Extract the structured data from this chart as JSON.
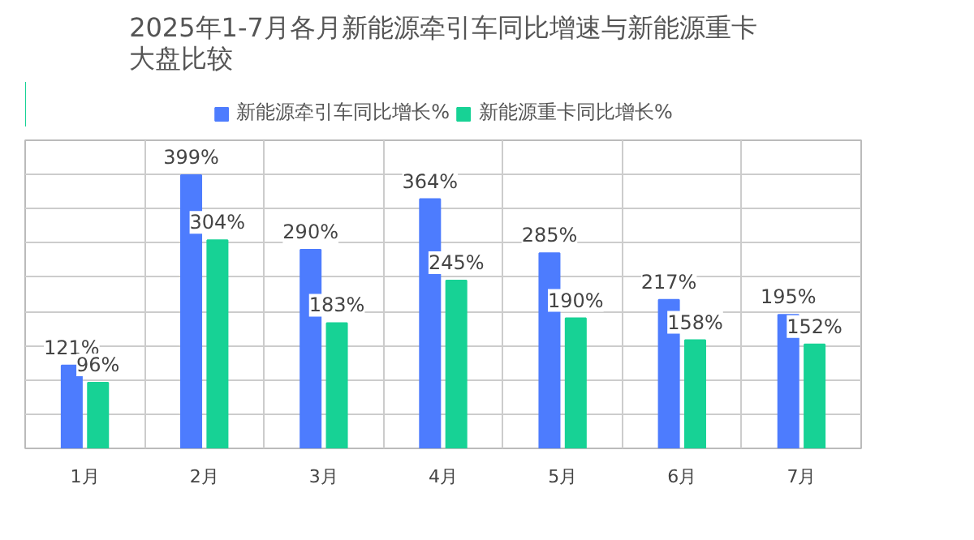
{
  "chart_data": {
    "type": "bar",
    "title": "2025年1-7月各月新能源牵引车同比增速与新能源重卡大盘比较",
    "categories": [
      "1月",
      "2月",
      "3月",
      "4月",
      "5月",
      "6月",
      "7月"
    ],
    "series": [
      {
        "name": "新能源牵引车同比增长%",
        "color": "#4d7cfe",
        "values": [
          121,
          399,
          290,
          364,
          285,
          217,
          195
        ],
        "value_labels": [
          "121%",
          "399%",
          "290%",
          "364%",
          "285%",
          "217%",
          "195%"
        ]
      },
      {
        "name": "新能源重卡同比增长%",
        "color": "#17d295",
        "values": [
          96,
          304,
          183,
          245,
          190,
          158,
          152
        ],
        "value_labels": [
          "96%",
          "304%",
          "183%",
          "245%",
          "190%",
          "158%",
          "152%"
        ]
      }
    ],
    "ylim": [
      0,
      450
    ],
    "yticks": [
      {
        "value": 0,
        "label": null
      },
      {
        "value": 50,
        "label": null
      },
      {
        "value": 100,
        "label": null
      },
      {
        "value": 150,
        "label": null
      },
      {
        "value": 200,
        "label": null
      },
      {
        "value": 250,
        "label": null
      },
      {
        "value": 300,
        "label": null
      },
      {
        "value": 350,
        "label": null
      },
      {
        "value": 400,
        "label": null
      },
      {
        "value": 450,
        "label": null
      }
    ],
    "grid": true,
    "legend": "top",
    "tick_labels": "x"
  }
}
